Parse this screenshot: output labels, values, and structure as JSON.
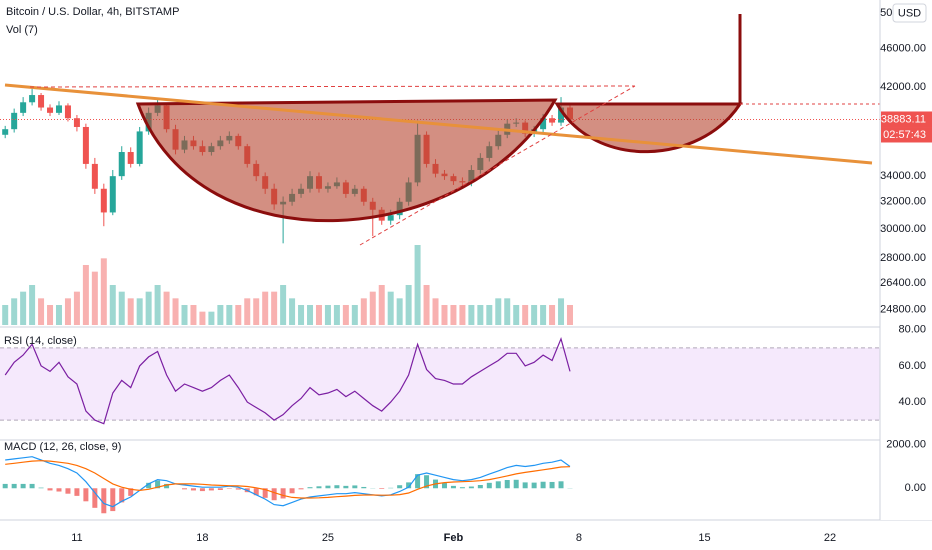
{
  "chart_data": {
    "type": "candlestick",
    "title": "Bitcoin / U.S. Dollar, 4h, BITSTAMP",
    "currency": "USD",
    "log_scale": true,
    "grid": true,
    "up_color": "#26a69a",
    "down_color": "#ef5350",
    "last_price": 38883.11,
    "countdown": "02:57:43",
    "xlim": [
      6.71,
      55.79
    ],
    "xticks": [
      11,
      18,
      25,
      {
        "value": 32,
        "label": "Feb"
      },
      {
        "value": 39,
        "label": "8"
      },
      {
        "value": 46,
        "label": "15"
      },
      {
        "value": 53,
        "label": "22"
      }
    ],
    "ylim": [
      23900,
      51600
    ],
    "yticks": [
      {
        "value": 50000,
        "label": "50000.00"
      },
      {
        "value": 46000,
        "label": "46000.00"
      },
      {
        "value": 42000,
        "label": "42000.00"
      },
      {
        "value": 34000,
        "label": "34000.00"
      },
      {
        "value": 32000,
        "label": "32000.00"
      },
      {
        "value": 30000,
        "label": "30000.00"
      },
      {
        "value": 28000,
        "label": "28000.00"
      },
      {
        "value": 26400,
        "label": "26400.00"
      },
      {
        "value": 24800,
        "label": "24800.00"
      }
    ],
    "x": [
      7,
      7.5,
      8,
      8.5,
      9,
      9.5,
      10,
      10.5,
      11,
      11.5,
      12,
      12.5,
      13,
      13.5,
      14,
      14.5,
      15,
      15.5,
      16,
      16.5,
      17,
      17.5,
      18,
      18.5,
      19,
      19.5,
      20,
      20.5,
      21,
      21.5,
      22,
      22.5,
      23,
      23.5,
      24,
      24.5,
      25,
      25.5,
      26,
      26.5,
      27,
      27.5,
      28,
      28.5,
      29,
      29.5,
      30,
      30.5,
      31,
      31.5,
      32,
      32.5,
      33,
      33.5,
      34,
      34.5,
      35,
      35.5,
      36,
      36.5,
      37,
      37.5,
      38,
      38.5
    ],
    "open": [
      37500,
      38000,
      39500,
      40500,
      41200,
      40000,
      39500,
      40200,
      39000,
      38200,
      35000,
      33000,
      31200,
      34000,
      36000,
      35000,
      37800,
      39500,
      40200,
      38000,
      36200,
      37000,
      36500,
      36000,
      36500,
      37000,
      37400,
      36500,
      35000,
      34000,
      33000,
      31800,
      32000,
      32600,
      33000,
      34000,
      33000,
      33200,
      33500,
      32600,
      33000,
      32000,
      31400,
      30600,
      31000,
      32000,
      33500,
      37500,
      35000,
      34200,
      34000,
      33600,
      33500,
      34500,
      35500,
      36500,
      37500,
      38500,
      38600,
      37600,
      38000,
      39000,
      38600,
      40000
    ],
    "high": [
      38300,
      39900,
      41000,
      41900,
      41400,
      40300,
      40600,
      40400,
      39300,
      38500,
      35500,
      33400,
      34500,
      36500,
      36400,
      38200,
      40000,
      40800,
      40400,
      38400,
      37400,
      37400,
      37000,
      36800,
      37400,
      37800,
      37600,
      36700,
      35300,
      34300,
      33400,
      32400,
      33000,
      33400,
      34400,
      34300,
      33500,
      33900,
      33700,
      33300,
      33200,
      32300,
      31600,
      31400,
      32300,
      33900,
      38800,
      37800,
      35400,
      34500,
      34200,
      33900,
      34900,
      35900,
      36900,
      37900,
      38900,
      39000,
      38800,
      38300,
      39400,
      39300,
      41000,
      40200
    ],
    "low": [
      37200,
      37700,
      39200,
      40200,
      39700,
      39200,
      39300,
      38700,
      37800,
      34600,
      32600,
      30200,
      31000,
      33700,
      34700,
      34800,
      37500,
      39200,
      37700,
      35800,
      35900,
      36200,
      35700,
      35700,
      36200,
      36700,
      36200,
      34700,
      33600,
      32600,
      31400,
      29000,
      31700,
      32300,
      32700,
      32700,
      32700,
      33000,
      32300,
      32400,
      31700,
      29500,
      30300,
      30300,
      30700,
      31700,
      33200,
      34700,
      33900,
      33700,
      33300,
      33200,
      33200,
      34200,
      35200,
      36200,
      37200,
      38200,
      37300,
      37300,
      37700,
      38300,
      38300,
      38600
    ],
    "close": [
      38000,
      39500,
      40500,
      41200,
      40000,
      39500,
      40200,
      39000,
      38200,
      35000,
      33000,
      31200,
      34000,
      36000,
      35000,
      37800,
      39500,
      40200,
      38000,
      36200,
      37000,
      36500,
      36000,
      36500,
      37000,
      37400,
      36500,
      35000,
      34000,
      33000,
      31800,
      32000,
      32600,
      33000,
      34000,
      33000,
      33200,
      33500,
      32600,
      33000,
      32000,
      31400,
      30600,
      31000,
      32000,
      33500,
      37500,
      35000,
      34200,
      34000,
      33600,
      33500,
      34500,
      35500,
      36500,
      37500,
      38500,
      38600,
      37600,
      38000,
      39000,
      38600,
      40000,
      38883.11
    ],
    "volume": {
      "title": "Vol (7)",
      "values": [
        3,
        4,
        5,
        6,
        4,
        3,
        3,
        4,
        5,
        9,
        8,
        10,
        6,
        5,
        4,
        4,
        5,
        6,
        5,
        4,
        3,
        3,
        2,
        2,
        3,
        3,
        3,
        4,
        4,
        5,
        5,
        6,
        4,
        3,
        3,
        3,
        3,
        3,
        3,
        3,
        4,
        5,
        6,
        5,
        4,
        6,
        12,
        6,
        4,
        3,
        3,
        3,
        3,
        3,
        3,
        4,
        4,
        3,
        3,
        3,
        3,
        3,
        4,
        3
      ]
    },
    "rsi": {
      "title": "RSI (14, close)",
      "color": "#7b1fa2",
      "band": [
        30,
        70
      ],
      "ylim": [
        19,
        81
      ],
      "yticks": [
        {
          "value": 80,
          "label": "80.00"
        },
        {
          "value": 60,
          "label": "60.00"
        },
        {
          "value": 40,
          "label": "40.00"
        }
      ],
      "values": [
        55,
        62,
        66,
        72,
        60,
        57,
        62,
        54,
        50,
        35,
        30,
        28,
        45,
        52,
        48,
        60,
        65,
        68,
        55,
        46,
        50,
        48,
        46,
        48,
        52,
        55,
        48,
        40,
        37,
        34,
        30,
        33,
        38,
        42,
        48,
        44,
        45,
        47,
        43,
        46,
        42,
        38,
        35,
        40,
        46,
        55,
        72,
        58,
        53,
        52,
        50,
        50,
        54,
        57,
        60,
        63,
        67,
        67,
        60,
        62,
        66,
        63,
        75,
        57
      ]
    },
    "macd": {
      "title": "MACD (12, 26, close, 9)",
      "macd_color": "#2196f3",
      "signal_color": "#ff6d00",
      "ylim": [
        -1460,
        2220
      ],
      "yticks": [
        {
          "value": 2000,
          "label": "2000.00"
        },
        {
          "value": 0,
          "label": "0.00"
        }
      ],
      "macd": [
        1300,
        1350,
        1400,
        1450,
        1300,
        1150,
        1050,
        900,
        700,
        300,
        -200,
        -700,
        -850,
        -600,
        -400,
        -100,
        200,
        400,
        350,
        200,
        150,
        100,
        50,
        50,
        50,
        100,
        50,
        -100,
        -300,
        -500,
        -750,
        -800,
        -650,
        -500,
        -400,
        -350,
        -300,
        -250,
        -250,
        -200,
        -250,
        -300,
        -350,
        -300,
        -150,
        50,
        600,
        700,
        600,
        500,
        400,
        350,
        400,
        500,
        650,
        800,
        950,
        1050,
        1000,
        1050,
        1150,
        1200,
        1300,
        1000
      ],
      "signal": [
        1100,
        1150,
        1200,
        1250,
        1270,
        1250,
        1200,
        1150,
        1050,
        900,
        700,
        450,
        200,
        50,
        -50,
        -100,
        -50,
        50,
        150,
        200,
        200,
        200,
        180,
        150,
        130,
        120,
        110,
        80,
        20,
        -60,
        -200,
        -330,
        -420,
        -450,
        -450,
        -440,
        -420,
        -390,
        -360,
        -330,
        -310,
        -310,
        -320,
        -320,
        -290,
        -220,
        -50,
        100,
        200,
        260,
        290,
        300,
        320,
        350,
        400,
        480,
        570,
        660,
        730,
        790,
        850,
        910,
        980,
        990
      ],
      "histogram": [
        200,
        200,
        200,
        200,
        30,
        -100,
        -150,
        -250,
        -350,
        -600,
        -900,
        -1150,
        -1050,
        -650,
        -350,
        0,
        250,
        350,
        200,
        0,
        -50,
        -100,
        -130,
        -100,
        -80,
        -20,
        -60,
        -180,
        -320,
        -440,
        -550,
        -470,
        -230,
        -50,
        50,
        90,
        120,
        140,
        110,
        130,
        60,
        10,
        -30,
        20,
        140,
        270,
        650,
        600,
        400,
        240,
        110,
        50,
        80,
        150,
        250,
        320,
        380,
        390,
        270,
        260,
        300,
        290,
        320,
        10
      ]
    }
  }
}
